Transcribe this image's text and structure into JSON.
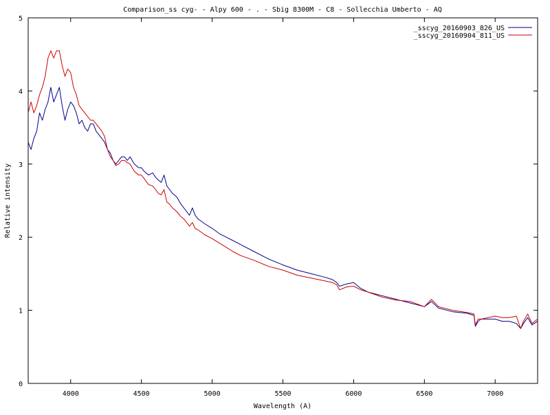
{
  "chart_data": {
    "type": "line",
    "title": "Comparison_ss cyg- - Alpy 600 - . - Sbig 8300M -  C8  - Sollecchia Umberto - AQ",
    "xlabel": "Wavelength (A)",
    "ylabel": "Relative intensity",
    "xlim": [
      3700,
      7300
    ],
    "ylim": [
      0,
      5
    ],
    "xticks": [
      4000,
      4500,
      5000,
      5500,
      6000,
      6500,
      7000
    ],
    "yticks": [
      0,
      1,
      2,
      3,
      4,
      5
    ],
    "grid": false,
    "legend_position": "top-right",
    "series": [
      {
        "name": "_sscyg_20160903_826_US",
        "color": "#00008b",
        "x": [
          3700,
          3720,
          3740,
          3760,
          3780,
          3800,
          3820,
          3840,
          3860,
          3880,
          3900,
          3920,
          3940,
          3960,
          3980,
          4000,
          4020,
          4040,
          4060,
          4080,
          4100,
          4120,
          4140,
          4160,
          4180,
          4200,
          4220,
          4240,
          4260,
          4280,
          4300,
          4320,
          4340,
          4360,
          4380,
          4400,
          4420,
          4450,
          4480,
          4500,
          4520,
          4550,
          4580,
          4600,
          4620,
          4640,
          4660,
          4680,
          4700,
          4720,
          4750,
          4780,
          4800,
          4820,
          4840,
          4860,
          4880,
          4900,
          4950,
          5000,
          5050,
          5100,
          5150,
          5200,
          5300,
          5400,
          5500,
          5600,
          5700,
          5800,
          5850,
          5880,
          5900,
          5950,
          6000,
          6050,
          6100,
          6200,
          6300,
          6400,
          6500,
          6550,
          6600,
          6700,
          6800,
          6850,
          6860,
          6880,
          6900,
          7000,
          7050,
          7100,
          7150,
          7180,
          7200,
          7230,
          7260,
          7300
        ],
        "y": [
          3.3,
          3.2,
          3.35,
          3.45,
          3.7,
          3.6,
          3.75,
          3.85,
          4.05,
          3.85,
          3.95,
          4.05,
          3.8,
          3.6,
          3.75,
          3.85,
          3.8,
          3.7,
          3.55,
          3.6,
          3.5,
          3.45,
          3.55,
          3.55,
          3.45,
          3.4,
          3.35,
          3.3,
          3.2,
          3.15,
          3.05,
          3.0,
          3.05,
          3.1,
          3.1,
          3.05,
          3.1,
          3.0,
          2.95,
          2.95,
          2.9,
          2.85,
          2.88,
          2.82,
          2.78,
          2.75,
          2.85,
          2.7,
          2.65,
          2.6,
          2.55,
          2.45,
          2.4,
          2.35,
          2.3,
          2.4,
          2.3,
          2.25,
          2.18,
          2.12,
          2.05,
          2.0,
          1.95,
          1.9,
          1.8,
          1.7,
          1.62,
          1.55,
          1.5,
          1.45,
          1.42,
          1.38,
          1.33,
          1.36,
          1.38,
          1.3,
          1.25,
          1.2,
          1.15,
          1.1,
          1.05,
          1.12,
          1.03,
          0.98,
          0.96,
          0.93,
          0.78,
          0.85,
          0.88,
          0.88,
          0.85,
          0.85,
          0.82,
          0.75,
          0.82,
          0.9,
          0.8,
          0.85
        ]
      },
      {
        "name": "_sscyg_20160904_811_US",
        "color": "#cc0000",
        "x": [
          3700,
          3720,
          3740,
          3760,
          3780,
          3800,
          3820,
          3840,
          3860,
          3880,
          3900,
          3920,
          3940,
          3960,
          3980,
          4000,
          4020,
          4040,
          4060,
          4080,
          4100,
          4120,
          4140,
          4160,
          4180,
          4200,
          4220,
          4240,
          4260,
          4280,
          4300,
          4320,
          4340,
          4360,
          4380,
          4400,
          4420,
          4450,
          4480,
          4500,
          4520,
          4550,
          4580,
          4600,
          4620,
          4640,
          4660,
          4680,
          4700,
          4720,
          4750,
          4780,
          4800,
          4820,
          4840,
          4860,
          4880,
          4900,
          4950,
          5000,
          5050,
          5100,
          5150,
          5200,
          5300,
          5400,
          5500,
          5600,
          5700,
          5800,
          5850,
          5880,
          5900,
          5950,
          6000,
          6050,
          6100,
          6200,
          6300,
          6400,
          6500,
          6550,
          6600,
          6700,
          6800,
          6850,
          6860,
          6880,
          6900,
          7000,
          7050,
          7100,
          7150,
          7180,
          7200,
          7230,
          7260,
          7300
        ],
        "y": [
          3.7,
          3.85,
          3.7,
          3.8,
          3.95,
          4.05,
          4.2,
          4.45,
          4.55,
          4.45,
          4.55,
          4.55,
          4.35,
          4.2,
          4.3,
          4.25,
          4.05,
          3.95,
          3.8,
          3.75,
          3.7,
          3.65,
          3.6,
          3.6,
          3.55,
          3.5,
          3.45,
          3.38,
          3.2,
          3.1,
          3.05,
          2.98,
          3.0,
          3.05,
          3.05,
          3.02,
          3.0,
          2.9,
          2.85,
          2.85,
          2.8,
          2.72,
          2.7,
          2.65,
          2.6,
          2.58,
          2.65,
          2.48,
          2.45,
          2.4,
          2.35,
          2.28,
          2.25,
          2.2,
          2.15,
          2.2,
          2.12,
          2.1,
          2.03,
          1.98,
          1.92,
          1.86,
          1.8,
          1.75,
          1.68,
          1.6,
          1.55,
          1.48,
          1.44,
          1.4,
          1.38,
          1.35,
          1.28,
          1.32,
          1.33,
          1.28,
          1.25,
          1.18,
          1.14,
          1.12,
          1.05,
          1.15,
          1.05,
          1.0,
          0.97,
          0.95,
          0.8,
          0.88,
          0.88,
          0.92,
          0.9,
          0.9,
          0.92,
          0.75,
          0.85,
          0.95,
          0.82,
          0.88
        ]
      }
    ]
  }
}
